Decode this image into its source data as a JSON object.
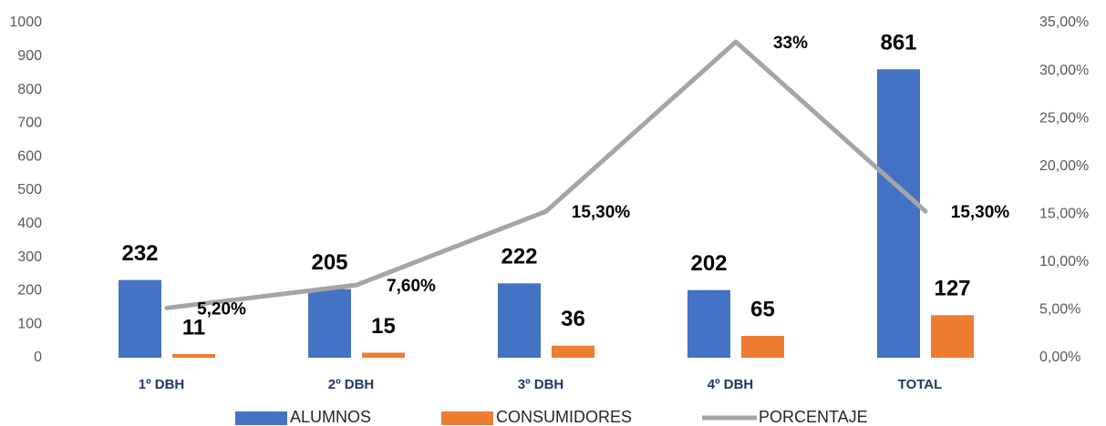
{
  "chart_data": {
    "type": "bar",
    "categories": [
      "1º DBH",
      "2º DBH",
      "3º DBH",
      "4º DBH",
      "TOTAL"
    ],
    "series": [
      {
        "name": "ALUMNOS",
        "color": "#4472c4",
        "values": [
          232,
          205,
          222,
          202,
          861
        ]
      },
      {
        "name": "CONSUMIDORES",
        "color": "#ed7d31",
        "values": [
          11,
          15,
          36,
          65,
          127
        ]
      },
      {
        "name": "PORCENTAJE",
        "color": "#a5a5a5",
        "axis": "y2",
        "values": [
          5.2,
          7.6,
          15.3,
          33,
          15.3
        ],
        "value_labels": [
          "5,20%",
          "7,60%",
          "15,30%",
          "33%",
          "15,30%"
        ]
      }
    ],
    "ylim": [
      0,
      1000
    ],
    "yticks": [
      0,
      100,
      200,
      300,
      400,
      500,
      600,
      700,
      800,
      900,
      1000
    ],
    "y2lim": [
      0,
      35
    ],
    "y2ticks": [
      {
        "value": 0,
        "label": "0,00%"
      },
      {
        "value": 5,
        "label": "5,00%"
      },
      {
        "value": 10,
        "label": "10,00%"
      },
      {
        "value": 15,
        "label": "15,00%"
      },
      {
        "value": 20,
        "label": "20,00%"
      },
      {
        "value": 25,
        "label": "25,00%"
      },
      {
        "value": 30,
        "label": "30,00%"
      },
      {
        "value": 35,
        "label": "35,00%"
      }
    ],
    "legend": "bottom"
  }
}
